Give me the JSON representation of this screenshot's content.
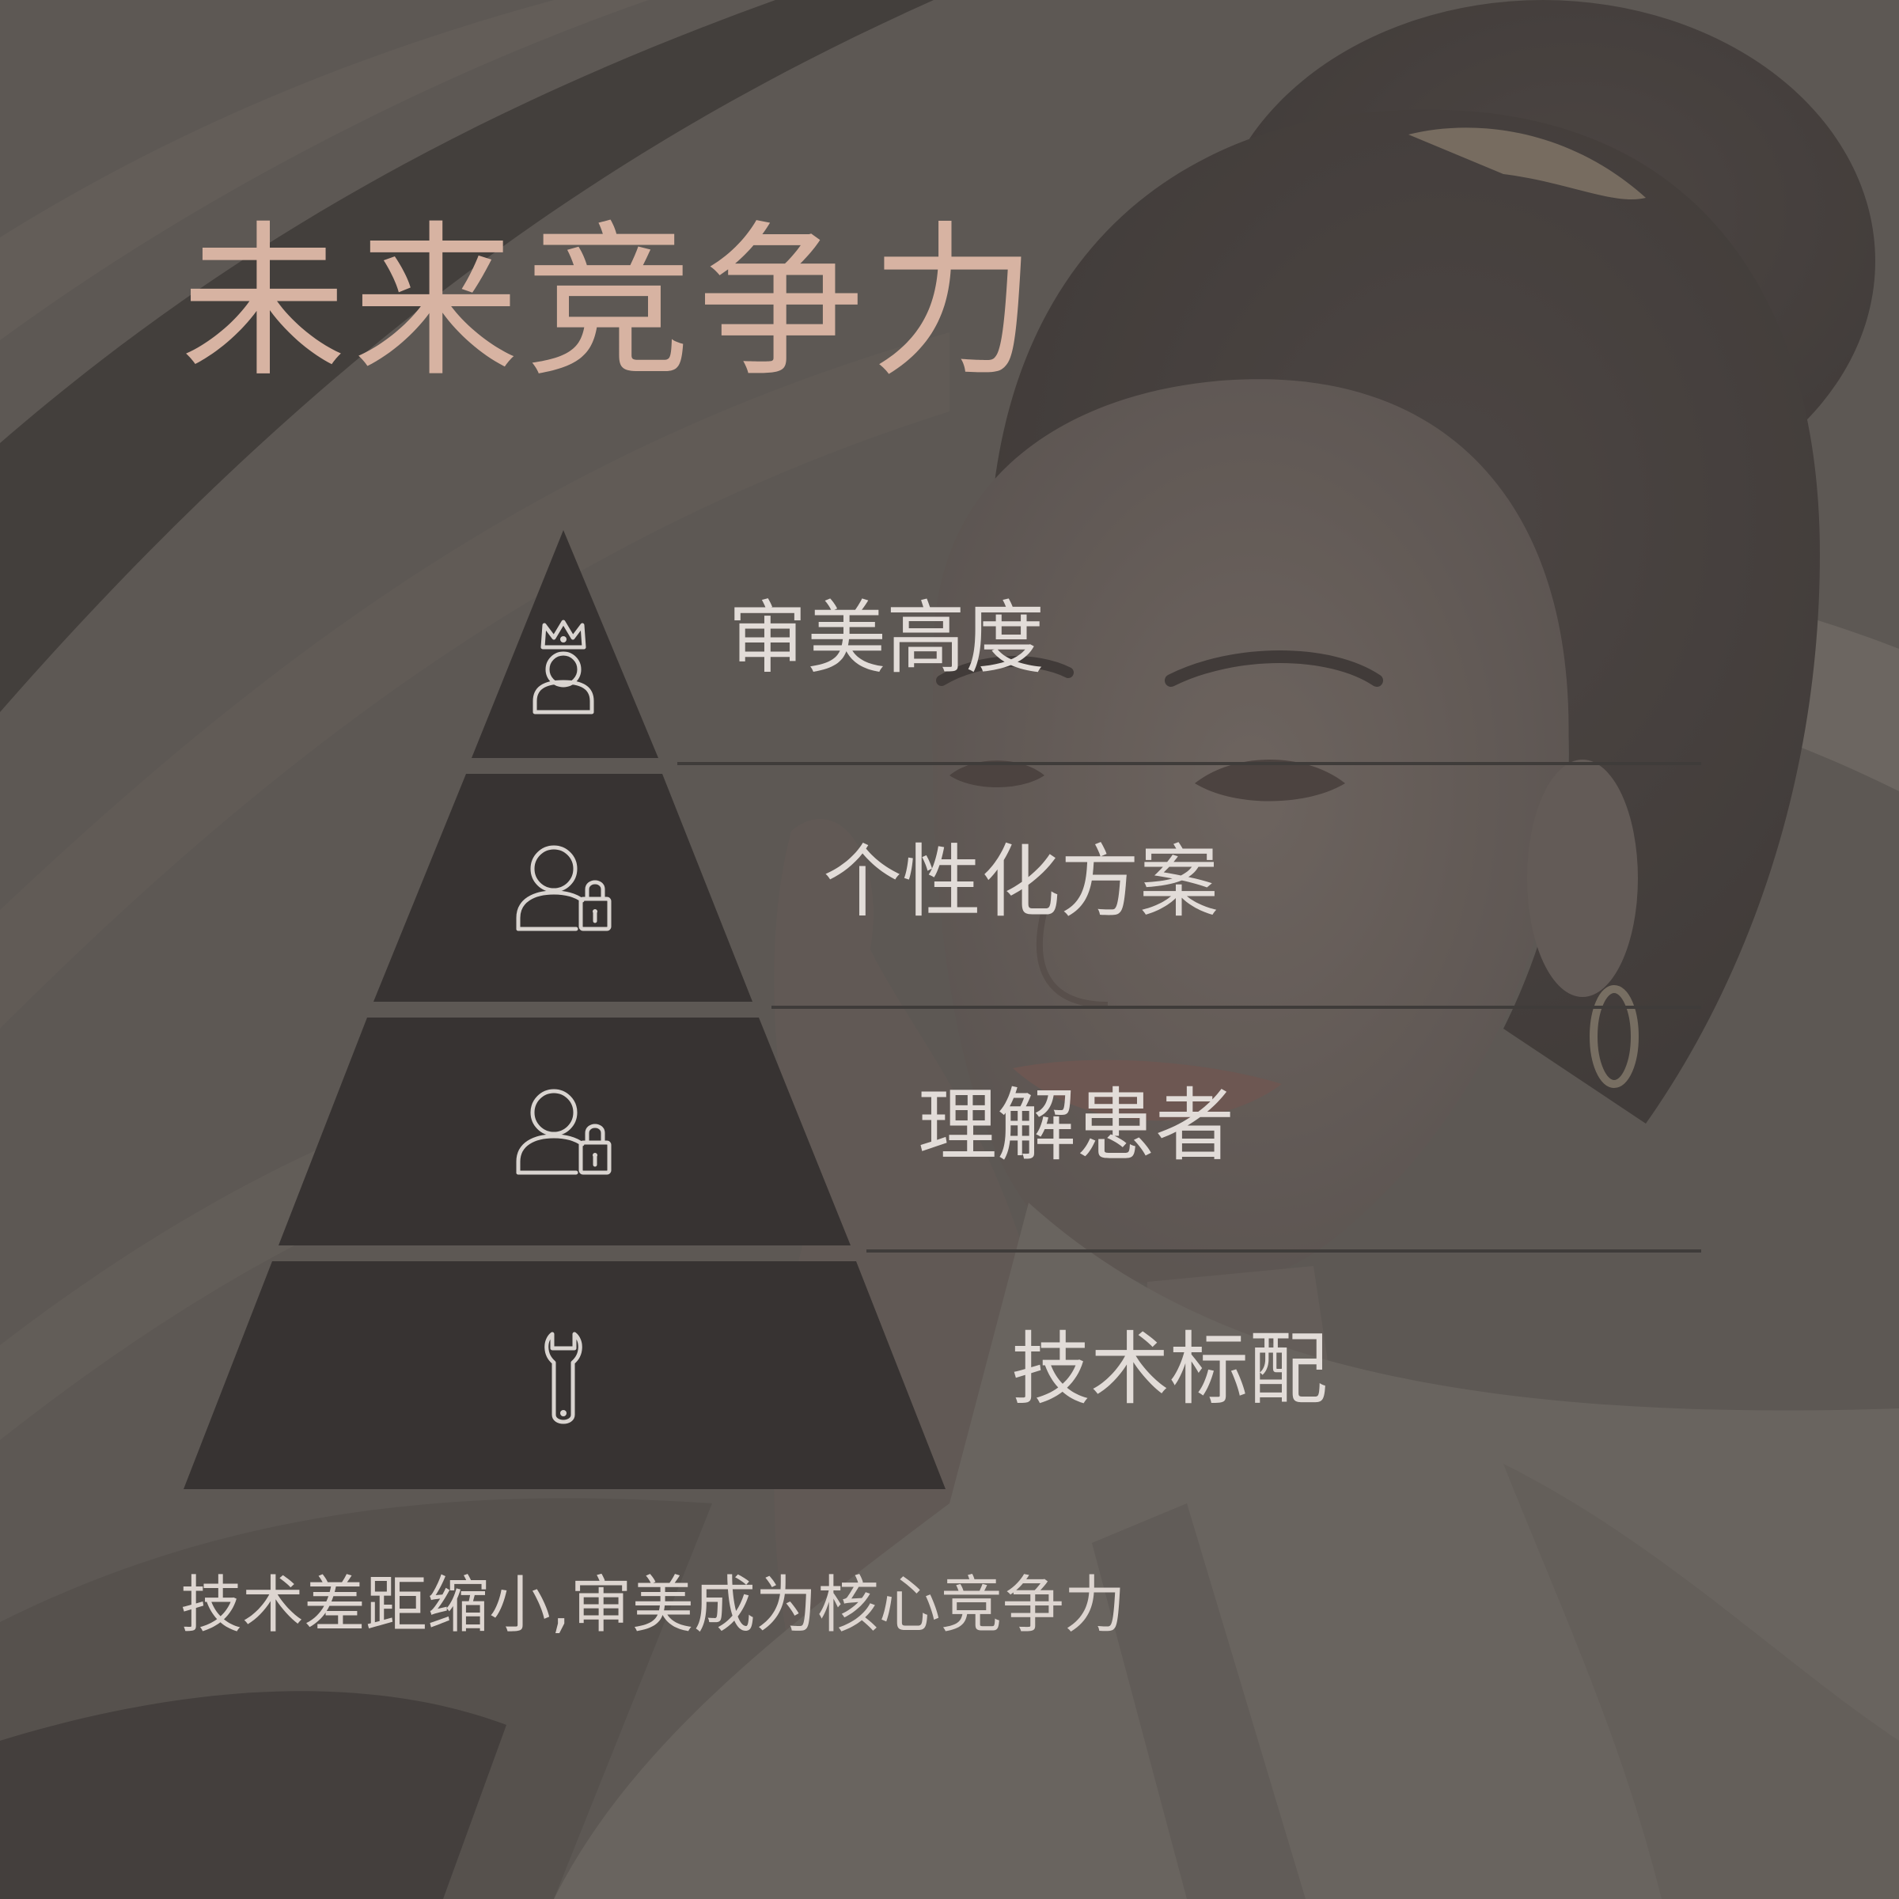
{
  "title": "未来竞争力",
  "tiers": [
    {
      "label": "审美高度",
      "icon": "crowned-person-icon"
    },
    {
      "label": "个性化方案",
      "icon": "user-lock-icon"
    },
    {
      "label": "理解患者",
      "icon": "user-lock-icon"
    },
    {
      "label": "技术标配",
      "icon": "wrench-icon"
    }
  ],
  "caption": "技术差距缩小,审美成为核心竞争力",
  "colors": {
    "background": "#5e5a56",
    "overlay": "#4f4b48",
    "title": "#d7b3a2",
    "tier_fill": "#373332",
    "icon_stroke": "#d9d4d0",
    "label_text": "#e2dcd8",
    "divider": "#3f3c3a"
  }
}
